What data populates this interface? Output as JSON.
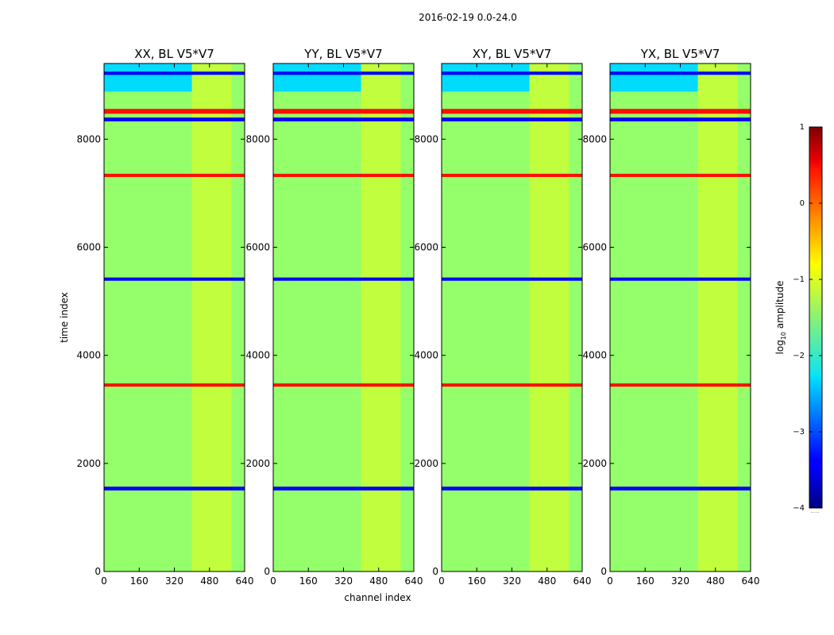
{
  "chart_data": {
    "type": "heatmap",
    "suptitle": "2016-02-19 0.0-24.0",
    "xlabel": "channel index",
    "ylabel": "time index",
    "xlim": [
      0,
      640
    ],
    "ylim": [
      0,
      9400
    ],
    "xticks": [
      0,
      160,
      320,
      480,
      640
    ],
    "yticks": [
      0,
      2000,
      4000,
      6000,
      8000
    ],
    "colormap": "jet",
    "colorbar": {
      "label_main": "log",
      "label_sub": "10",
      "label_rest": " amplitude",
      "ticks": [
        1,
        0,
        -1,
        -2,
        -3,
        -4
      ],
      "tick_labels": [
        "1",
        "0",
        "−1",
        "−2",
        "−3",
        "−4"
      ],
      "range": [
        -4,
        1
      ],
      "dots": "·····"
    },
    "panels": [
      {
        "title": "XX, BL V5*V7",
        "show_ylabel": true,
        "show_xlabel": false
      },
      {
        "title": "YY, BL V5*V7",
        "show_ylabel": false,
        "show_xlabel": true
      },
      {
        "title": "XY, BL V5*V7",
        "show_ylabel": false,
        "show_xlabel": false
      },
      {
        "title": "YX, BL V5*V7",
        "show_ylabel": false,
        "show_xlabel": false
      }
    ],
    "flagged_time_bands": [
      [
        1500,
        1570
      ],
      [
        3420,
        3480
      ],
      [
        5380,
        5440
      ],
      [
        7300,
        7360
      ],
      [
        8330,
        8400
      ],
      [
        8470,
        8560
      ],
      [
        9190,
        9250
      ]
    ],
    "low_amplitude_block": {
      "time_range": [
        8880,
        9400
      ],
      "channel_range": [
        0,
        400
      ],
      "value": -2.3
    },
    "rfi_channel_range": [
      400,
      580
    ],
    "background_level": -1.4
  }
}
